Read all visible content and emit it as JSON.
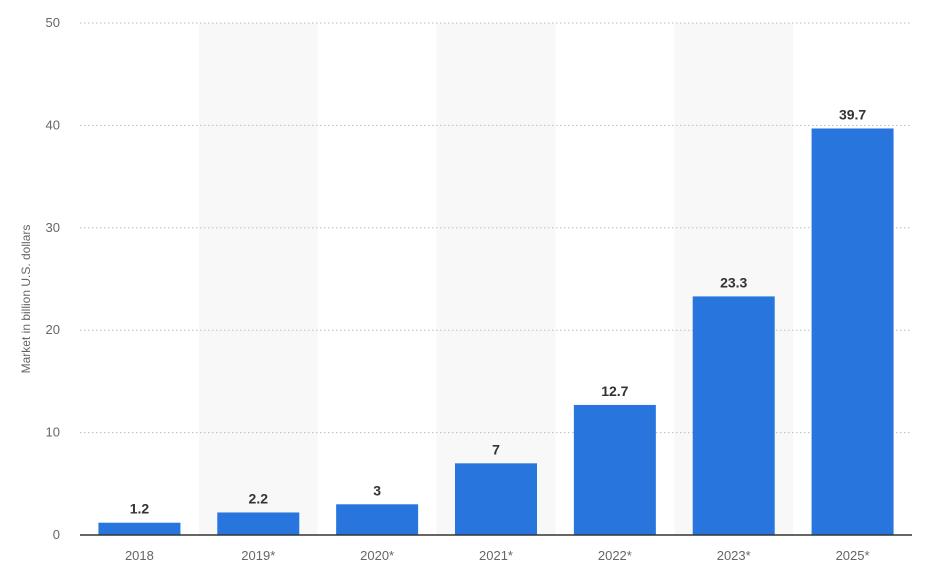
{
  "chart_data": {
    "type": "bar",
    "categories": [
      "2018",
      "2019*",
      "2020*",
      "2021*",
      "2022*",
      "2023*",
      "2025*"
    ],
    "values": [
      1.2,
      2.2,
      3,
      7,
      12.7,
      23.3,
      39.7
    ],
    "value_labels": [
      "1.2",
      "2.2",
      "3",
      "7",
      "12.7",
      "23.3",
      "39.7"
    ],
    "title": "",
    "xlabel": "",
    "ylabel": "Market in billion U.S. dollars",
    "ylim": [
      0,
      50
    ],
    "yticks": [
      "0",
      "10",
      "20",
      "30",
      "40",
      "50"
    ],
    "grid": true,
    "bar_color": "#2876dd",
    "band_color": "#f8f8f8"
  }
}
